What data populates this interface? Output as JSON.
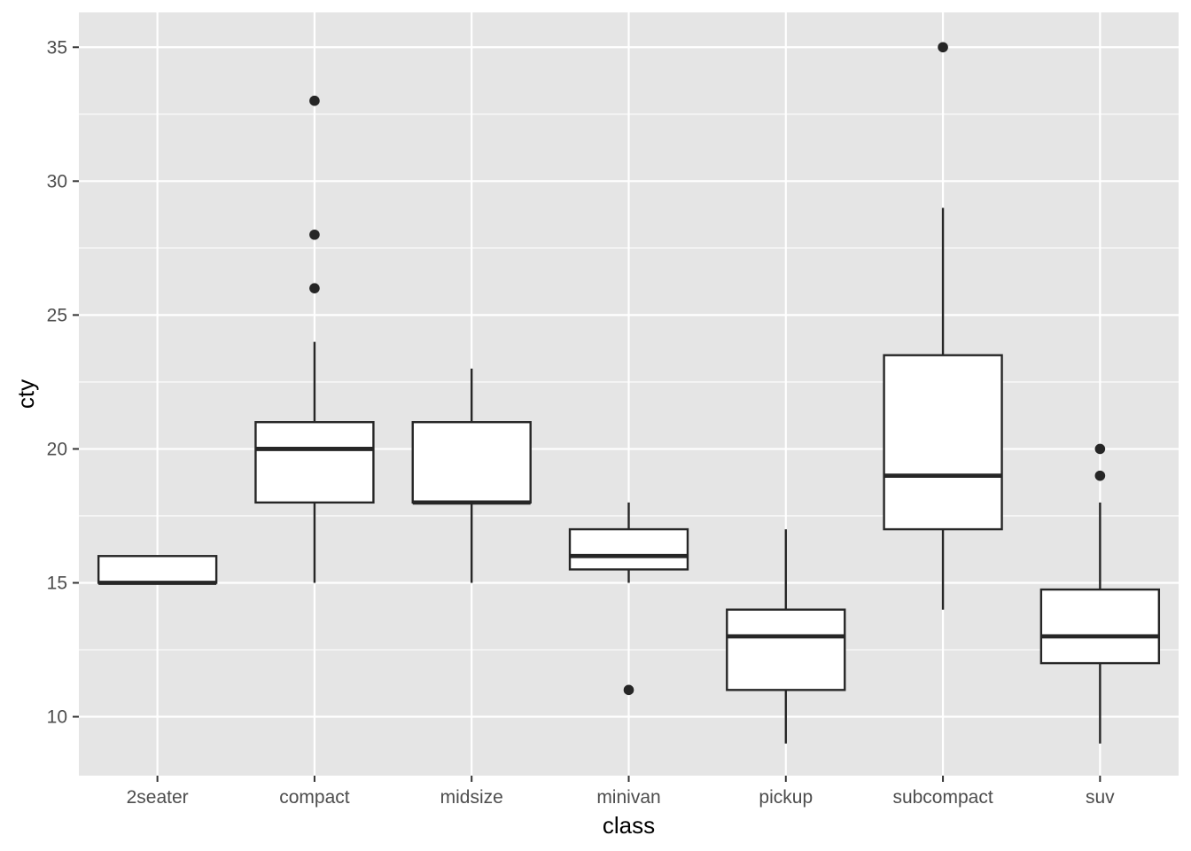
{
  "chart_data": {
    "type": "boxplot",
    "title": "",
    "xlabel": "class",
    "ylabel": "cty",
    "categories": [
      "2seater",
      "compact",
      "midsize",
      "minivan",
      "pickup",
      "subcompact",
      "suv"
    ],
    "boxes": [
      {
        "category": "2seater",
        "whisker_low": 15,
        "q1": 15,
        "median": 15,
        "q3": 16,
        "whisker_high": 16,
        "outliers": []
      },
      {
        "category": "compact",
        "whisker_low": 15,
        "q1": 18,
        "median": 20,
        "q3": 21,
        "whisker_high": 24,
        "outliers": [
          26,
          28,
          33
        ]
      },
      {
        "category": "midsize",
        "whisker_low": 15,
        "q1": 18,
        "median": 18,
        "q3": 21,
        "whisker_high": 23,
        "outliers": []
      },
      {
        "category": "minivan",
        "whisker_low": 15,
        "q1": 15.5,
        "median": 16,
        "q3": 17,
        "whisker_high": 18,
        "outliers": [
          11
        ]
      },
      {
        "category": "pickup",
        "whisker_low": 9,
        "q1": 11,
        "median": 13,
        "q3": 14,
        "whisker_high": 17,
        "outliers": []
      },
      {
        "category": "subcompact",
        "whisker_low": 14,
        "q1": 17,
        "median": 19,
        "q3": 23.5,
        "whisker_high": 29,
        "outliers": [
          35
        ]
      },
      {
        "category": "suv",
        "whisker_low": 9,
        "q1": 12,
        "median": 13,
        "q3": 14.75,
        "whisker_high": 18,
        "outliers": [
          19,
          20
        ]
      }
    ],
    "y_ticks": [
      10,
      15,
      20,
      25,
      30,
      35
    ],
    "ylim": [
      7.8,
      36.3
    ],
    "grid": true,
    "colors": {
      "panel_background": "#e5e5e5",
      "grid_line": "#ffffff",
      "box_fill": "#ffffff",
      "box_stroke": "#262626",
      "outlier": "#262626",
      "tick_text": "#4d4d4d"
    }
  }
}
